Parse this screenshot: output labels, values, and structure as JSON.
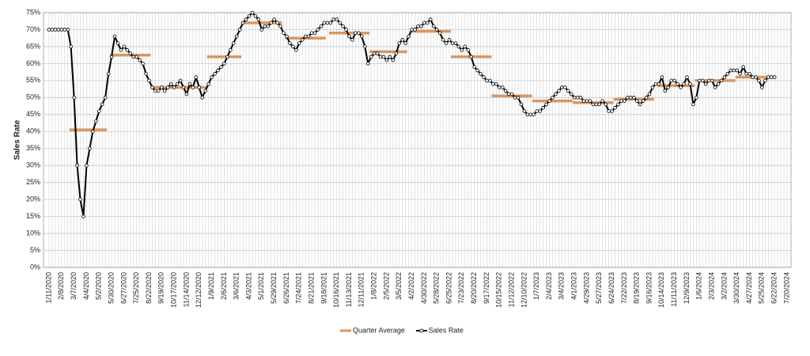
{
  "chart_data": {
    "type": "line",
    "y_label": "Sales Rate",
    "ylim": [
      0,
      75
    ],
    "yticks": [
      {
        "value": 0,
        "label": "0%"
      },
      {
        "value": 5,
        "label": "5%"
      },
      {
        "value": 10,
        "label": "10%"
      },
      {
        "value": 15,
        "label": "15%"
      },
      {
        "value": 20,
        "label": "20%"
      },
      {
        "value": 25,
        "label": "25%"
      },
      {
        "value": 30,
        "label": "30%"
      },
      {
        "value": 35,
        "label": "35%"
      },
      {
        "value": 40,
        "label": "40%"
      },
      {
        "value": 45,
        "label": "45%"
      },
      {
        "value": 50,
        "label": "50%"
      },
      {
        "value": 55,
        "label": "55%"
      },
      {
        "value": 60,
        "label": "60%"
      },
      {
        "value": 65,
        "label": "65%"
      },
      {
        "value": 70,
        "label": "70%"
      },
      {
        "value": 75,
        "label": "75%"
      }
    ],
    "grid": true,
    "legend": "bottom",
    "categories": [
      "1/11/2020",
      null,
      null,
      null,
      "2/8/2020",
      null,
      null,
      null,
      "3/7/2020",
      null,
      null,
      null,
      "4/4/2020",
      null,
      null,
      null,
      "5/2/2020",
      null,
      null,
      null,
      "5/30/2020",
      null,
      null,
      null,
      "6/27/2020",
      null,
      null,
      null,
      "7/25/2020",
      null,
      null,
      null,
      "8/22/2020",
      null,
      null,
      null,
      "9/19/2020",
      null,
      null,
      null,
      "10/17/2020",
      null,
      null,
      null,
      "11/14/2020",
      null,
      null,
      null,
      "12/12/2020",
      null,
      null,
      null,
      "1/9/2021",
      null,
      null,
      null,
      "2/6/2021",
      null,
      null,
      null,
      "3/6/2021",
      null,
      null,
      null,
      "4/3/2021",
      null,
      null,
      null,
      "5/1/2021",
      null,
      null,
      null,
      "5/29/2021",
      null,
      null,
      null,
      "6/26/2021",
      null,
      null,
      null,
      "7/24/2021",
      null,
      null,
      null,
      "8/21/2021",
      null,
      null,
      null,
      "9/18/2021",
      null,
      null,
      null,
      "10/16/2021",
      null,
      null,
      null,
      "11/13/2021",
      null,
      null,
      null,
      "12/11/2021",
      null,
      null,
      null,
      "1/8/2022",
      null,
      null,
      null,
      "2/5/2022",
      null,
      null,
      null,
      "3/5/2022",
      null,
      null,
      null,
      "4/2/2022",
      null,
      null,
      null,
      "4/30/2022",
      null,
      null,
      null,
      "5/28/2022",
      null,
      null,
      null,
      "6/25/2022",
      null,
      null,
      null,
      "7/23/2022",
      null,
      null,
      null,
      "8/20/2022",
      null,
      null,
      null,
      "9/17/2022",
      null,
      null,
      null,
      "10/15/2022",
      null,
      null,
      null,
      "11/12/2022",
      null,
      null,
      null,
      "12/10/2022",
      null,
      null,
      null,
      "1/7/2023",
      null,
      null,
      null,
      "2/4/2023",
      null,
      null,
      null,
      "3/4/2023",
      null,
      null,
      null,
      "4/1/2023",
      null,
      null,
      null,
      "4/29/2023",
      null,
      null,
      null,
      "5/27/2023",
      null,
      null,
      null,
      "6/24/2023",
      null,
      null,
      null,
      "7/22/2023",
      null,
      null,
      null,
      "8/19/2023",
      null,
      null,
      null,
      "9/16/2023",
      null,
      null,
      null,
      "10/14/2023",
      null,
      null,
      null,
      "11/11/2023",
      null,
      null,
      null,
      "12/9/2023",
      null,
      null,
      null,
      "1/6/2024",
      null,
      null,
      null,
      "2/3/2024",
      null,
      null,
      null,
      "3/2/2024",
      null,
      null,
      null,
      "3/30/2024",
      null,
      null,
      null,
      "4/27/2024",
      null,
      null,
      null,
      "5/25/2024",
      null,
      null,
      null,
      "6/22/2024",
      null,
      null,
      null,
      "7/20/2024"
    ],
    "series": [
      {
        "name": "Quarter Average",
        "color": "#d8955e",
        "mark": "dash",
        "values": [
          70,
          70,
          70,
          70,
          70,
          70,
          70,
          40.5,
          40.5,
          40.5,
          40.5,
          40.5,
          40.5,
          40.5,
          40.5,
          40.5,
          40.5,
          40.5,
          40.5,
          null,
          62.5,
          62.5,
          62.5,
          62.5,
          62.5,
          62.5,
          62.5,
          62.5,
          62.5,
          62.5,
          62.5,
          62.5,
          62.5,
          null,
          53,
          53,
          53,
          53,
          53,
          53,
          53,
          53,
          53,
          53,
          53,
          53,
          53,
          53,
          53,
          53,
          53,
          62,
          62,
          62,
          62,
          62,
          62,
          62,
          62,
          62,
          62,
          62,
          72,
          72,
          72,
          72,
          72,
          72,
          72,
          72,
          72,
          72,
          72,
          72,
          72,
          null,
          67.5,
          67.5,
          67.5,
          67.5,
          67.5,
          67.5,
          67.5,
          67.5,
          67.5,
          67.5,
          67.5,
          67.5,
          67.5,
          null,
          69,
          69,
          69,
          69,
          69,
          69,
          69,
          69,
          69,
          69,
          69,
          69,
          69,
          63.5,
          63.5,
          63.5,
          63.5,
          63.5,
          63.5,
          63.5,
          63.5,
          63.5,
          63.5,
          63.5,
          63.5,
          null,
          69.5,
          69.5,
          69.5,
          69.5,
          69.5,
          69.5,
          69.5,
          69.5,
          69.5,
          69.5,
          69.5,
          69.5,
          69.5,
          62,
          62,
          62,
          62,
          62,
          62,
          62,
          62,
          62,
          62,
          62,
          62,
          62,
          50.5,
          50.5,
          50.5,
          50.5,
          50.5,
          50.5,
          50.5,
          50.5,
          50.5,
          50.5,
          50.5,
          50.5,
          50.5,
          49,
          49,
          49,
          49,
          49,
          49,
          49,
          49,
          49,
          49,
          49,
          49,
          49,
          48.5,
          48.5,
          48.5,
          48.5,
          48.5,
          48.5,
          48.5,
          48.5,
          48.5,
          48.5,
          48.5,
          48.5,
          48.5,
          49.5,
          49.5,
          49.5,
          49.5,
          49.5,
          49.5,
          49.5,
          49.5,
          49.5,
          49.5,
          49.5,
          49.5,
          49.5,
          null,
          53.5,
          53.5,
          53.5,
          53.5,
          53.5,
          53.5,
          53.5,
          53.5,
          53.5,
          53.5,
          53.5,
          53.5,
          55,
          55,
          55,
          55,
          55,
          55,
          55,
          55,
          55,
          55,
          55,
          55,
          55,
          56,
          56,
          56,
          56,
          56,
          56,
          56,
          56,
          56,
          56,
          56,
          56,
          56,
          null,
          null,
          null,
          null
        ]
      },
      {
        "name": "Sales Rate",
        "color": "#000000",
        "mark": "line",
        "values": [
          70,
          70,
          70,
          70,
          70,
          70,
          70,
          65,
          50,
          30,
          20,
          15,
          30,
          35,
          40,
          43,
          46,
          48,
          50,
          57,
          62,
          68,
          66,
          64,
          65,
          64,
          63,
          62,
          62,
          61,
          60,
          57,
          55,
          53,
          52,
          52,
          53,
          52,
          53,
          54,
          53,
          54,
          55,
          53,
          51,
          54,
          53,
          56,
          53,
          50,
          52,
          54,
          56,
          57,
          58,
          59,
          60,
          62,
          64,
          66,
          68,
          70,
          72,
          73,
          74,
          75,
          74,
          73,
          70,
          71,
          71,
          72,
          73,
          72,
          71,
          69,
          68,
          66,
          65,
          64,
          66,
          67,
          68,
          68,
          69,
          69,
          70,
          71,
          72,
          72,
          72,
          73,
          73,
          72,
          71,
          70,
          68,
          67,
          69,
          69,
          68,
          65,
          60,
          62,
          63,
          63,
          62,
          62,
          61,
          62,
          61,
          63,
          66,
          67,
          66,
          68,
          70,
          70,
          71,
          71,
          72,
          72,
          73,
          71,
          70,
          69,
          67,
          66,
          67,
          66,
          66,
          65,
          64,
          65,
          64,
          62,
          59,
          58,
          57,
          56,
          55,
          55,
          54,
          54,
          53,
          53,
          52,
          51,
          51,
          50,
          50,
          48,
          46,
          45,
          45,
          45,
          46,
          46,
          47,
          48,
          49,
          50,
          51,
          52,
          53,
          53,
          52,
          51,
          50,
          50,
          50,
          49,
          49,
          49,
          48,
          48,
          48,
          49,
          48,
          46,
          46,
          47,
          48,
          49,
          49,
          50,
          50,
          50,
          49,
          48,
          49,
          50,
          51,
          53,
          54,
          54,
          56,
          52,
          53,
          55,
          55,
          54,
          53,
          54,
          56,
          54,
          48,
          50,
          55,
          55,
          54,
          55,
          55,
          53,
          54,
          55,
          56,
          57,
          58,
          58,
          58,
          57,
          59,
          57,
          57,
          56,
          56,
          55,
          53,
          55,
          56,
          56,
          56,
          null,
          null,
          null,
          null
        ]
      }
    ]
  }
}
